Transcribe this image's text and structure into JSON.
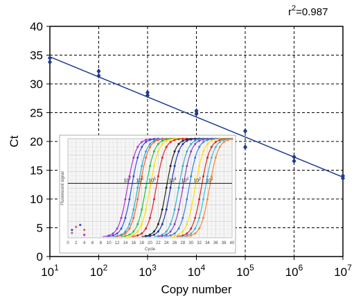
{
  "chart_data": [
    {
      "type": "scatter",
      "subtitle": "",
      "xlabel": "Copy number",
      "ylabel": "Ct",
      "x_scale": "log",
      "xlim": [
        10,
        10000000
      ],
      "ylim": [
        0,
        40
      ],
      "grid": true,
      "x_ticks": [
        {
          "base": "10",
          "exp": "1",
          "value": 10
        },
        {
          "base": "10",
          "exp": "2",
          "value": 100
        },
        {
          "base": "10",
          "exp": "3",
          "value": 1000
        },
        {
          "base": "10",
          "exp": "4",
          "value": 10000
        },
        {
          "base": "10",
          "exp": "5",
          "value": 100000
        },
        {
          "base": "10",
          "exp": "6",
          "value": 1000000
        },
        {
          "base": "10",
          "exp": "7",
          "value": 10000000
        }
      ],
      "y_ticks": [
        "0",
        "5",
        "10",
        "15",
        "20",
        "25",
        "30",
        "35",
        "40"
      ],
      "annotation": {
        "base": "r",
        "exp": "2",
        "rest": "=0.987"
      },
      "series": [
        {
          "points": [
            {
              "x": 10,
              "y": 33.8
            },
            {
              "x": 10,
              "y": 34.5
            },
            {
              "x": 100,
              "y": 31.4
            },
            {
              "x": 100,
              "y": 32.2
            },
            {
              "x": 1000,
              "y": 28.0
            },
            {
              "x": 1000,
              "y": 28.5
            },
            {
              "x": 10000,
              "y": 24.8
            },
            {
              "x": 10000,
              "y": 25.3
            },
            {
              "x": 100000,
              "y": 19.0
            },
            {
              "x": 100000,
              "y": 21.8
            },
            {
              "x": 1000000,
              "y": 16.6
            },
            {
              "x": 1000000,
              "y": 17.3
            },
            {
              "x": 10000000,
              "y": 13.6
            },
            {
              "x": 10000000,
              "y": 14.0
            }
          ]
        }
      ],
      "fit_line": {
        "x": [
          10,
          10000000
        ],
        "y": [
          34.7,
          13.8
        ]
      },
      "colors": {
        "points": "#1f3b8f",
        "line": "#1f3b8f",
        "grid": "#000000"
      }
    },
    {
      "type": "line",
      "xlabel": "Cycle",
      "ylabel": "Fluorescent signal",
      "x_ticks": [
        "0",
        "2",
        "4",
        "6",
        "8",
        "10",
        "12",
        "14",
        "16",
        "18",
        "20",
        "22",
        "24",
        "26",
        "28",
        "30",
        "32",
        "34",
        "36",
        "38",
        "40"
      ],
      "xlim": [
        0,
        40
      ],
      "ylim": [
        0,
        1
      ],
      "threshold": 0.55,
      "threshold_labels": [
        {
          "base": "10",
          "exp": "7",
          "cycle": 14.5
        },
        {
          "base": "10",
          "exp": "6",
          "cycle": 17.5
        },
        {
          "base": "10",
          "exp": "5",
          "cycle": 20.5
        },
        {
          "base": "10",
          "exp": "4",
          "cycle": 25.5
        },
        {
          "base": "10",
          "exp": "3",
          "cycle": 28.5
        },
        {
          "base": "10",
          "exp": "2",
          "cycle": 31.5
        },
        {
          "base": "10",
          "exp": "1",
          "cycle": 34.5
        }
      ],
      "series": [
        {
          "color": "#b030d0",
          "midpoint": 14.5
        },
        {
          "color": "#3050e0",
          "midpoint": 15.5
        },
        {
          "color": "#20b0e0",
          "midpoint": 17.0
        },
        {
          "color": "#ff6020",
          "midpoint": 17.5
        },
        {
          "color": "#20c040",
          "midpoint": 19.0
        },
        {
          "color": "#ffe000",
          "midpoint": 20.0
        },
        {
          "color": "#e02020",
          "midpoint": 21.5
        },
        {
          "color": "#202020",
          "midpoint": 24.0
        },
        {
          "color": "#2030b0",
          "midpoint": 25.0
        },
        {
          "color": "#30b0d0",
          "midpoint": 27.0
        },
        {
          "color": "#9040c0",
          "midpoint": 28.0
        },
        {
          "color": "#3080e0",
          "midpoint": 29.5
        },
        {
          "color": "#ffe000",
          "midpoint": 31.0
        },
        {
          "color": "#e02020",
          "midpoint": 32.5
        },
        {
          "color": "#30c0e0",
          "midpoint": 33.5
        },
        {
          "color": "#ff8030",
          "midpoint": 34.5
        }
      ],
      "noise_points": [
        {
          "cycle": 1,
          "value": 0.05,
          "color": "#e06060"
        },
        {
          "cycle": 1,
          "value": 0.08,
          "color": "#3050e0"
        },
        {
          "cycle": 2,
          "value": 0.11,
          "color": "#e06060"
        },
        {
          "cycle": 3,
          "value": 0.13,
          "color": "#3050e0"
        },
        {
          "cycle": 4,
          "value": 0.08,
          "color": "#e06060"
        },
        {
          "cycle": 4,
          "value": 0.03,
          "color": "#b030d0"
        }
      ]
    }
  ]
}
